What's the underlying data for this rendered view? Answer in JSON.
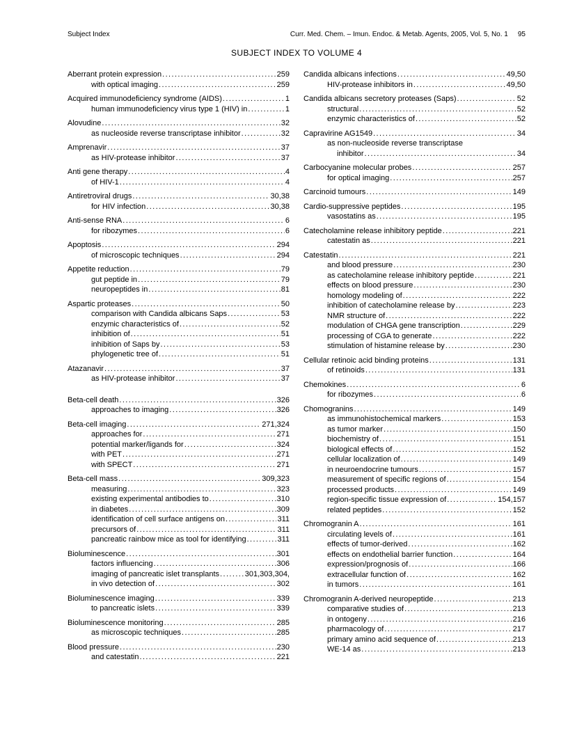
{
  "header": {
    "left": "Subject Index",
    "right": "Curr. Med. Chem. – Imun. Endoc. & Metab. Agents, 2005, Vol. 5, No. 1",
    "page_number": "95"
  },
  "title": "SUBJECT INDEX TO VOLUME 4",
  "columns": [
    {
      "groups": [
        {
          "lines": [
            {
              "t": "Aberrant protein expression",
              "p": "259",
              "i": 0
            },
            {
              "t": "with optical imaging",
              "p": "259",
              "i": 1
            }
          ]
        },
        {
          "lines": [
            {
              "t": "Acquired immunodeficiency syndrome (AIDS)",
              "p": "1",
              "i": 0
            },
            {
              "t": "human immunodeficiency virus type 1 (HIV) in",
              "p": "1",
              "i": 1
            }
          ]
        },
        {
          "lines": [
            {
              "t": "Alovudine",
              "p": "32",
              "i": 0
            },
            {
              "t": "as nucleoside reverse transcriptase inhibitor",
              "p": "32",
              "i": 1
            }
          ]
        },
        {
          "lines": [
            {
              "t": "Amprenavir",
              "p": "37",
              "i": 0
            },
            {
              "t": "as HIV-protease inhibitor",
              "p": "37",
              "i": 1
            }
          ]
        },
        {
          "lines": [
            {
              "t": "Anti gene therapy",
              "p": "4",
              "i": 0
            },
            {
              "t": "of HIV-1",
              "p": "4",
              "i": 1
            }
          ]
        },
        {
          "lines": [
            {
              "t": "Antiretroviral drugs",
              "p": "30,38",
              "i": 0
            },
            {
              "t": "for HIV infection",
              "p": "30,38",
              "i": 1
            }
          ]
        },
        {
          "lines": [
            {
              "t": "Anti-sense RNA",
              "p": "6",
              "i": 0
            },
            {
              "t": "for ribozymes",
              "p": "6",
              "i": 1
            }
          ]
        },
        {
          "lines": [
            {
              "t": "Apoptosis",
              "p": "294",
              "i": 0
            },
            {
              "t": "of microscopic techniques",
              "p": "294",
              "i": 1
            }
          ]
        },
        {
          "lines": [
            {
              "t": "Appetite reduction",
              "p": "79",
              "i": 0
            },
            {
              "t": "gut peptide in",
              "p": "79",
              "i": 1
            },
            {
              "t": "neuropeptides in",
              "p": "81",
              "i": 1
            }
          ]
        },
        {
          "lines": [
            {
              "t": "Aspartic proteases",
              "p": "50",
              "i": 0
            },
            {
              "t": "comparison with Candida albicans Saps",
              "p": "53",
              "i": 1
            },
            {
              "t": "enzymic characteristics of",
              "p": "52",
              "i": 1
            },
            {
              "t": "inhibition of",
              "p": "51",
              "i": 1
            },
            {
              "t": "inhibition of Saps by",
              "p": "53",
              "i": 1
            },
            {
              "t": "phylogenetic tree of",
              "p": "51",
              "i": 1
            }
          ]
        },
        {
          "lines": [
            {
              "t": "Atazanavir",
              "p": "37",
              "i": 0
            },
            {
              "t": "as HIV-protease inhibitor",
              "p": "37",
              "i": 1
            }
          ]
        },
        {
          "section_break": true,
          "lines": [
            {
              "t": "Beta-cell death",
              "p": "326",
              "i": 0
            },
            {
              "t": "approaches to imaging",
              "p": "326",
              "i": 1
            }
          ]
        },
        {
          "lines": [
            {
              "t": "Beta-cell imaging",
              "p": "271,324",
              "i": 0
            },
            {
              "t": "approaches for",
              "p": "271",
              "i": 1
            },
            {
              "t": "potential marker/ligands for",
              "p": "324",
              "i": 1
            },
            {
              "t": "with PET",
              "p": "271",
              "i": 1
            },
            {
              "t": "with SPECT",
              "p": "271",
              "i": 1
            }
          ]
        },
        {
          "lines": [
            {
              "t": "Beta-cell mass",
              "p": "309,323",
              "i": 0
            },
            {
              "t": "measuring",
              "p": "323",
              "i": 1
            },
            {
              "t": "existing experimental antibodies to",
              "p": "310",
              "i": 1
            },
            {
              "t": "in diabetes",
              "p": "309",
              "i": 1
            },
            {
              "t": "identification of cell surface antigens on",
              "p": "311",
              "i": 1
            },
            {
              "t": "precursors of",
              "p": "311",
              "i": 1
            },
            {
              "t": "pancreatic rainbow mice as tool for identifying",
              "p": "311",
              "i": 1
            }
          ]
        },
        {
          "lines": [
            {
              "t": "Bioluminescence",
              "p": "301",
              "i": 0
            },
            {
              "t": "factors influencing",
              "p": "306",
              "i": 1
            },
            {
              "t": "imaging of pancreatic islet transplants",
              "p": "301,303,304,",
              "i": 1
            },
            {
              "t": "in vivo detection of",
              "p": "302",
              "i": 1
            }
          ]
        },
        {
          "lines": [
            {
              "t": "Bioluminescence imaging",
              "p": "339",
              "i": 0
            },
            {
              "t": "to pancreatic islets",
              "p": "339",
              "i": 1
            }
          ]
        },
        {
          "lines": [
            {
              "t": "Bioluminescence monitoring",
              "p": "285",
              "i": 0
            },
            {
              "t": "as microscopic techniques",
              "p": "285",
              "i": 1
            }
          ]
        },
        {
          "lines": [
            {
              "t": "Blood pressure",
              "p": "230",
              "i": 0
            },
            {
              "t": "and catestatin",
              "p": "221",
              "i": 1
            }
          ]
        }
      ]
    },
    {
      "groups": [
        {
          "lines": [
            {
              "t": "Candida albicans infections",
              "p": "49,50",
              "i": 0
            },
            {
              "t": "HIV-protease inhibitors in",
              "p": "49,50",
              "i": 1
            }
          ]
        },
        {
          "lines": [
            {
              "t": "Candida albicans secretory proteases (Saps)",
              "p": "52",
              "i": 0
            },
            {
              "t": "structural",
              "p": "52",
              "i": 1
            },
            {
              "t": "enzymic characteristics of",
              "p": "52",
              "i": 1
            }
          ]
        },
        {
          "lines": [
            {
              "t": "Capravirine AG1549",
              "p": "34",
              "i": 0
            },
            {
              "t": "as non-nucleoside reverse transcriptase",
              "p": "",
              "i": 1,
              "noleader": true
            },
            {
              "t": "inhibitor",
              "p": "34",
              "i": 2
            }
          ]
        },
        {
          "lines": [
            {
              "t": "Carbocyanine molecular probes",
              "p": "257",
              "i": 0
            },
            {
              "t": "for optical imaging",
              "p": "257",
              "i": 1
            }
          ]
        },
        {
          "lines": [
            {
              "t": "Carcinoid tumours",
              "p": "149",
              "i": 0
            }
          ]
        },
        {
          "lines": [
            {
              "t": "Cardio-suppressive peptides",
              "p": "195",
              "i": 0
            },
            {
              "t": "vasostatins as",
              "p": "195",
              "i": 1
            }
          ]
        },
        {
          "lines": [
            {
              "t": "Catecholamine release inhibitory peptide",
              "p": "221",
              "i": 0
            },
            {
              "t": "catestatin as",
              "p": "221",
              "i": 1
            }
          ]
        },
        {
          "lines": [
            {
              "t": "Catestatin",
              "p": "221",
              "i": 0
            },
            {
              "t": "and blood pressure",
              "p": "230",
              "i": 1
            },
            {
              "t": "as catecholamine release inhibitory peptide",
              "p": "221",
              "i": 1
            },
            {
              "t": "effects on blood pressure",
              "p": "230",
              "i": 1
            },
            {
              "t": "homology modeling of",
              "p": "222",
              "i": 1
            },
            {
              "t": "inhibition of catecholamine release by",
              "p": "223",
              "i": 1
            },
            {
              "t": "NMR structure of",
              "p": "222",
              "i": 1
            },
            {
              "t": "modulation of CHGA gene transcription",
              "p": "229",
              "i": 1
            },
            {
              "t": "processing of CGA to generate",
              "p": "222",
              "i": 1
            },
            {
              "t": "stimulation of histamine release by",
              "p": "230",
              "i": 1
            }
          ]
        },
        {
          "lines": [
            {
              "t": "Cellular retinoic acid binding proteins",
              "p": "131",
              "i": 0
            },
            {
              "t": "of retinoids",
              "p": "131",
              "i": 1
            }
          ]
        },
        {
          "lines": [
            {
              "t": "Chemokines",
              "p": "6",
              "i": 0
            },
            {
              "t": "for ribozymes",
              "p": "6",
              "i": 1
            }
          ]
        },
        {
          "lines": [
            {
              "t": "Chomogranins",
              "p": "149",
              "i": 0
            },
            {
              "t": "as immunohistochemical markers",
              "p": "153",
              "i": 1
            },
            {
              "t": "as tumor marker",
              "p": "150",
              "i": 1
            },
            {
              "t": "biochemistry of",
              "p": "151",
              "i": 1
            },
            {
              "t": "biological effects of",
              "p": "152",
              "i": 1
            },
            {
              "t": "cellular localization of",
              "p": "149",
              "i": 1
            },
            {
              "t": "in neuroendocrine tumours",
              "p": "157",
              "i": 1
            },
            {
              "t": "measurement of specific regions of",
              "p": "154",
              "i": 1
            },
            {
              "t": "processed products",
              "p": "149",
              "i": 1
            },
            {
              "t": "region-specific tissue expression of",
              "p": "154,157",
              "i": 1
            },
            {
              "t": "related peptides",
              "p": "152",
              "i": 1
            }
          ]
        },
        {
          "lines": [
            {
              "t": "Chromogranin A",
              "p": "161",
              "i": 0
            },
            {
              "t": "circulating levels of",
              "p": "161",
              "i": 1
            },
            {
              "t": "effects of tumor-derived",
              "p": "162",
              "i": 1
            },
            {
              "t": "effects on endothelial barrier function",
              "p": "164",
              "i": 1
            },
            {
              "t": "expression/prognosis of",
              "p": "166",
              "i": 1
            },
            {
              "t": "extracellular function of",
              "p": "162",
              "i": 1
            },
            {
              "t": "in tumors",
              "p": "161",
              "i": 1
            }
          ]
        },
        {
          "lines": [
            {
              "t": "Chromogranin A-derived neuropeptide",
              "p": "213",
              "i": 0
            },
            {
              "t": "comparative studies of",
              "p": "213",
              "i": 1
            },
            {
              "t": "in ontogeny",
              "p": "216",
              "i": 1
            },
            {
              "t": "pharmacology of",
              "p": "217",
              "i": 1
            },
            {
              "t": "primary amino acid sequence of",
              "p": "213",
              "i": 1
            },
            {
              "t": "WE-14 as",
              "p": "213",
              "i": 1
            }
          ]
        }
      ]
    }
  ]
}
